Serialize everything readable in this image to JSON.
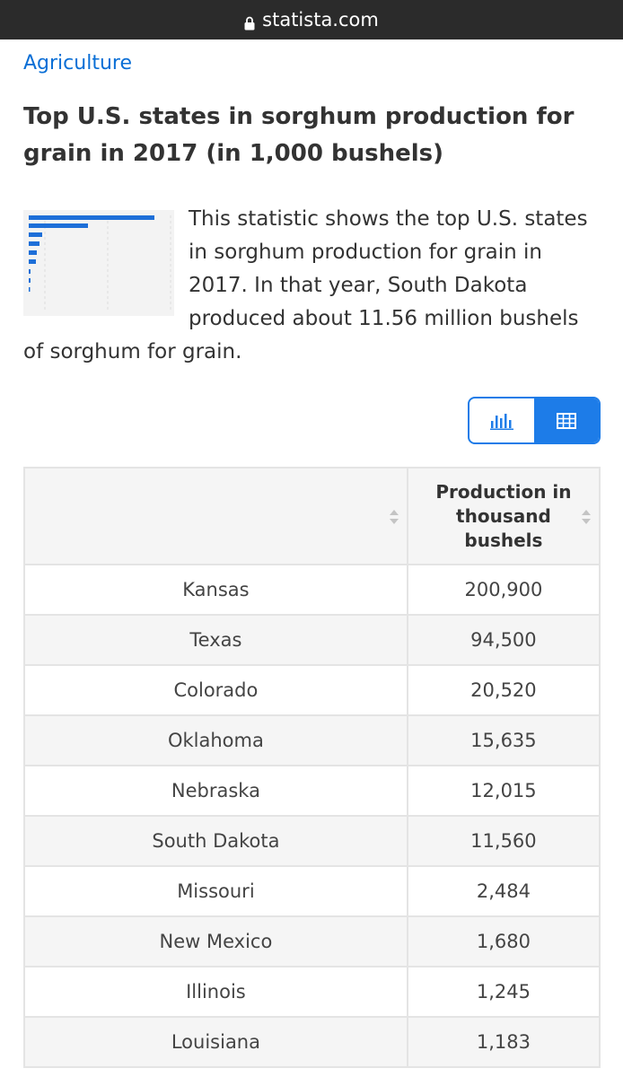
{
  "browser": {
    "url": "statista.com",
    "lock_icon": "lock-icon"
  },
  "breadcrumb": "Agriculture",
  "title": "Top U.S. states in sorghum production for grain in 2017 (in 1,000 bushels)",
  "description": "This statistic shows the top U.S. states in sorghum production for grain in 2017. In that year, South Dakota produced about 11.56 million bushels of sorghum for grain.",
  "view_toggle": {
    "options": [
      {
        "name": "chart",
        "icon": "bar-chart-icon",
        "active": false
      },
      {
        "name": "table",
        "icon": "table-icon",
        "active": true
      }
    ],
    "accent": "#1d7ce8"
  },
  "table": {
    "headers": [
      "",
      "Production in thousand bushels"
    ],
    "rows": [
      {
        "state": "Kansas",
        "value": "200,900"
      },
      {
        "state": "Texas",
        "value": "94,500"
      },
      {
        "state": "Colorado",
        "value": "20,520"
      },
      {
        "state": "Oklahoma",
        "value": "15,635"
      },
      {
        "state": "Nebraska",
        "value": "12,015"
      },
      {
        "state": "South Dakota",
        "value": "11,560"
      },
      {
        "state": "Missouri",
        "value": "2,484"
      },
      {
        "state": "New Mexico",
        "value": "1,680"
      },
      {
        "state": "Illinois",
        "value": "1,245"
      },
      {
        "state": "Louisiana",
        "value": "1,183"
      }
    ]
  }
}
